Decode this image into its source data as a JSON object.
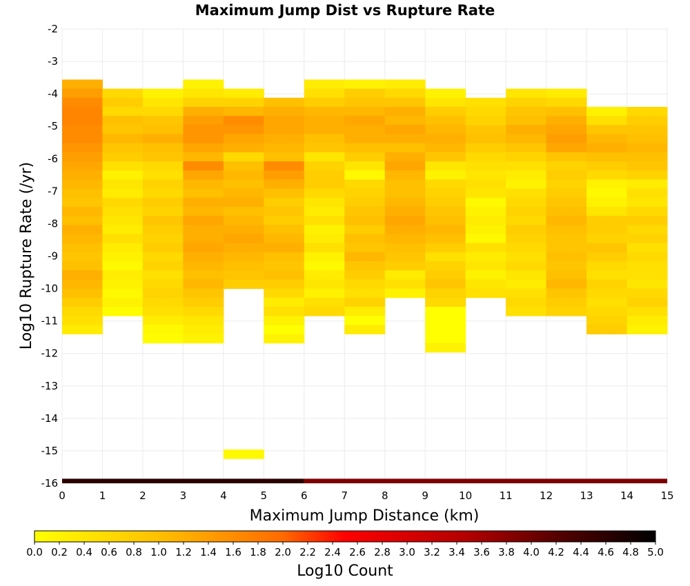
{
  "chart_data": {
    "type": "heatmap",
    "title": "Maximum Jump Dist vs Rupture Rate",
    "xlabel": "Maximum Jump Distance (km)",
    "ylabel": "Log10 Rupture Rate (/yr)",
    "xlim": [
      0,
      15
    ],
    "ylim": [
      -16,
      -2
    ],
    "x_ticks": [
      "0",
      "1",
      "2",
      "3",
      "4",
      "5",
      "6",
      "7",
      "8",
      "9",
      "10",
      "11",
      "12",
      "13",
      "14",
      "15"
    ],
    "y_ticks": [
      "-2",
      "-3",
      "-4",
      "-5",
      "-6",
      "-7",
      "-8",
      "-9",
      "-10",
      "-11",
      "-12",
      "-13",
      "-14",
      "-15",
      "-16"
    ],
    "bin_width": 1,
    "bin_height": 0.28,
    "grid": true,
    "colorbar": {
      "label": "Log10 Count",
      "range": [
        0,
        5
      ],
      "ticks": [
        "0.0",
        "0.2",
        "0.4",
        "0.6",
        "0.8",
        "1.0",
        "1.2",
        "1.4",
        "1.6",
        "1.8",
        "2.0",
        "2.2",
        "2.4",
        "2.6",
        "2.8",
        "3.0",
        "3.2",
        "3.4",
        "3.6",
        "3.8",
        "4.0",
        "4.2",
        "4.4",
        "4.6",
        "4.8",
        "5.0"
      ],
      "colors": [
        "#ffff00",
        "#ffa500",
        "#ff0000",
        "#8b0000",
        "#000000"
      ]
    },
    "columns": [
      {
        "x0": 0,
        "top": -3.56,
        "values": [
          1.2,
          1.4,
          1.6,
          1.7,
          1.7,
          1.6,
          1.6,
          1.5,
          1.4,
          1.3,
          1.2,
          1.1,
          1.0,
          0.9,
          1.1,
          1.0,
          1.2,
          1.1,
          1.0,
          0.9,
          1.0,
          1.2,
          1.1,
          1.0,
          0.8,
          0.6,
          0.5,
          0.3
        ]
      },
      {
        "x0": 1,
        "top": -3.84,
        "values": [
          0.6,
          0.8,
          0.6,
          1.0,
          0.9,
          1.1,
          0.9,
          0.8,
          0.5,
          0.2,
          0.4,
          0.3,
          0.6,
          0.5,
          0.4,
          0.3,
          0.5,
          0.3,
          0.2,
          0.1,
          0.3,
          0.2,
          0.1,
          0.2,
          0.05
        ]
      },
      {
        "x0": 2,
        "top": -3.84,
        "values": [
          0.2,
          0.4,
          0.6,
          0.9,
          1.0,
          1.2,
          1.0,
          0.9,
          0.6,
          0.5,
          0.7,
          0.6,
          0.8,
          0.7,
          0.9,
          0.8,
          0.7,
          0.8,
          0.6,
          0.7,
          0.5,
          0.6,
          0.7,
          0.6,
          0.5,
          0.3,
          0.1,
          0.05
        ]
      },
      {
        "x0": 3,
        "top": -3.56,
        "values": [
          0.2,
          0.4,
          0.7,
          1.2,
          1.4,
          1.5,
          1.5,
          1.3,
          1.1,
          1.6,
          1.3,
          1.1,
          1.0,
          1.2,
          1.1,
          1.3,
          1.2,
          1.2,
          1.3,
          1.2,
          1.1,
          1.0,
          1.1,
          0.9,
          0.8,
          0.6,
          0.4,
          0.3,
          0.2
        ]
      },
      {
        "x0": 4,
        "top": -3.84,
        "values": [
          0.3,
          0.7,
          1.1,
          1.6,
          1.5,
          1.3,
          1.2,
          0.6,
          1.0,
          1.1,
          1.0,
          1.1,
          1.2,
          1.0,
          1.1,
          1.2,
          1.3,
          1.2,
          1.1,
          1.0,
          0.9,
          0.8
        ]
      },
      {
        "x0": 5,
        "top": -4.12,
        "values": [
          1.0,
          1.2,
          1.3,
          1.3,
          1.2,
          1.1,
          1.0,
          1.6,
          1.4,
          1.2,
          1.0,
          0.8,
          0.9,
          0.8,
          1.0,
          1.1,
          1.2,
          1.0,
          0.9,
          1.0,
          0.8,
          0.6,
          0.3,
          0.5,
          0.2,
          0.0,
          0.2
        ]
      },
      {
        "x0": 6,
        "top": -3.56,
        "values": [
          0.3,
          0.5,
          0.8,
          1.1,
          1.2,
          1.2,
          1.0,
          0.9,
          0.4,
          0.7,
          0.8,
          0.8,
          0.6,
          0.4,
          0.3,
          0.5,
          0.2,
          0.3,
          0.5,
          0.2,
          0.1,
          0.3,
          0.4,
          0.2,
          0.5,
          0.6
        ]
      },
      {
        "x0": 7,
        "top": -3.56,
        "values": [
          0.2,
          0.8,
          0.9,
          1.1,
          1.3,
          1.2,
          1.2,
          1.0,
          0.8,
          0.4,
          0.1,
          0.6,
          0.7,
          0.8,
          0.9,
          1.0,
          0.8,
          1.0,
          0.9,
          1.1,
          0.9,
          0.8,
          0.6,
          0.5,
          0.7,
          0.3,
          0.0,
          0.3
        ]
      },
      {
        "x0": 8,
        "top": -3.56,
        "values": [
          0.3,
          0.6,
          0.9,
          1.2,
          1.1,
          1.3,
          1.2,
          1.0,
          1.2,
          1.3,
          1.1,
          1.0,
          1.0,
          1.1,
          1.2,
          1.3,
          1.2,
          1.1,
          1.0,
          0.9,
          0.8,
          0.3,
          0.5,
          0.2
        ]
      },
      {
        "x0": 9,
        "top": -3.84,
        "values": [
          0.2,
          0.4,
          0.8,
          1.0,
          1.1,
          1.2,
          1.1,
          0.9,
          0.4,
          0.2,
          0.6,
          0.7,
          0.8,
          0.9,
          1.0,
          1.1,
          1.0,
          0.8,
          0.5,
          0.7,
          0.8,
          0.9,
          0.7,
          0.6,
          0.0,
          0.0,
          0.0,
          0.0,
          0.2
        ]
      },
      {
        "x0": 10,
        "top": -4.12,
        "values": [
          0.5,
          0.6,
          0.7,
          0.9,
          1.0,
          0.8,
          0.6,
          0.5,
          0.4,
          0.5,
          0.4,
          0.1,
          0.2,
          0.3,
          0.2,
          0.1,
          0.5,
          0.3,
          0.4,
          0.2,
          0.4,
          0.5
        ]
      },
      {
        "x0": 11,
        "top": -3.84,
        "values": [
          0.4,
          0.7,
          0.9,
          1.0,
          1.2,
          1.1,
          0.9,
          0.7,
          0.5,
          0.3,
          0.2,
          0.5,
          0.6,
          0.7,
          0.6,
          0.8,
          0.7,
          0.6,
          0.5,
          0.6,
          0.4,
          0.3,
          0.5,
          0.6,
          0.5
        ]
      },
      {
        "x0": 12,
        "top": -3.84,
        "values": [
          0.3,
          0.6,
          1.0,
          1.2,
          1.3,
          1.4,
          1.3,
          0.9,
          0.7,
          0.8,
          0.7,
          0.8,
          0.9,
          1.0,
          1.1,
          1.0,
          0.9,
          0.9,
          1.0,
          0.9,
          1.0,
          1.1,
          0.9,
          0.8,
          0.7
        ]
      },
      {
        "x0": 13,
        "top": -4.4,
        "values": [
          0.2,
          0.5,
          0.9,
          1.1,
          1.2,
          1.0,
          0.8,
          0.6,
          0.2,
          0.1,
          0.2,
          0.4,
          0.8,
          0.8,
          0.7,
          0.9,
          0.8,
          0.6,
          0.5,
          0.7,
          0.6,
          0.5,
          0.6,
          0.7,
          0.8
        ]
      },
      {
        "x0": 14,
        "top": -4.4,
        "values": [
          0.6,
          0.8,
          0.9,
          1.0,
          1.1,
          1.0,
          0.9,
          0.7,
          0.3,
          0.5,
          0.4,
          0.6,
          0.8,
          0.6,
          0.7,
          0.5,
          0.6,
          0.5,
          0.5,
          0.4,
          0.6,
          0.7,
          0.5,
          0.3,
          0.2
        ]
      },
      {
        "x0": 4,
        "top": -14.96,
        "values": [
          0.1
        ]
      }
    ],
    "bottom_strip": [
      {
        "x0": 0,
        "x1": 6,
        "value": 4.6
      },
      {
        "x0": 6,
        "x1": 15,
        "value": 3.9
      }
    ]
  }
}
